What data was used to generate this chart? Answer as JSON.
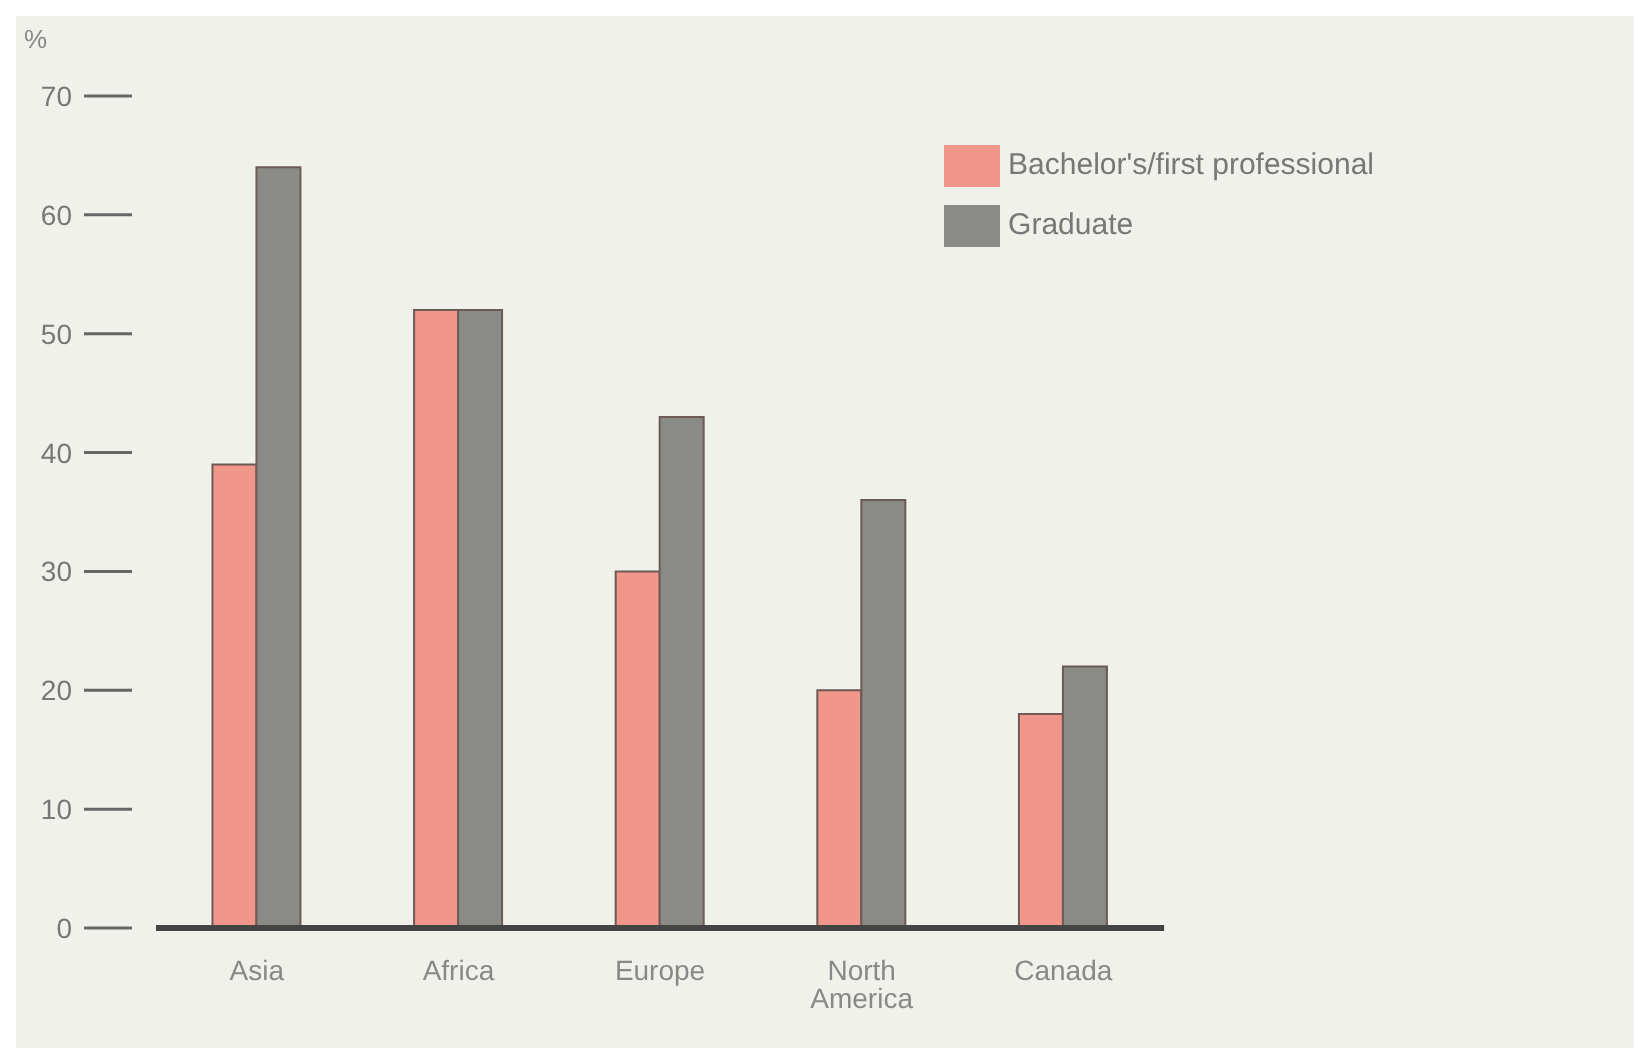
{
  "chart_data": {
    "type": "bar",
    "ylabel": "%",
    "categories": [
      "Asia",
      "Africa",
      "Europe",
      "North America",
      "Canada"
    ],
    "series": [
      {
        "name": "Bachelor's/first professional",
        "color": "#f0968a",
        "values": [
          39,
          52,
          30,
          20,
          18
        ]
      },
      {
        "name": "Graduate",
        "color": "#8a8a86",
        "values": [
          64,
          52,
          43,
          36,
          22
        ]
      }
    ],
    "ylim": [
      0,
      70
    ],
    "yticks": [
      0,
      10,
      20,
      30,
      40,
      50,
      60,
      70
    ],
    "grid": false,
    "legend": "top right"
  }
}
